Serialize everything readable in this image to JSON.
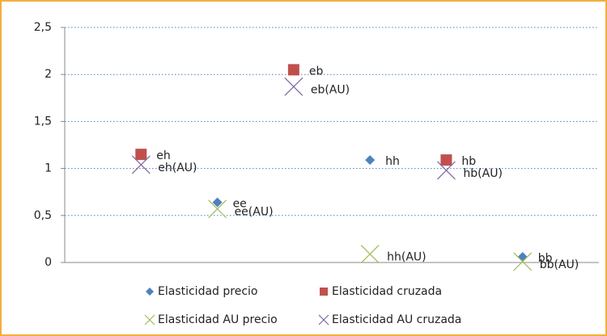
{
  "chart_data": {
    "type": "scatter",
    "xlim": [
      0,
      7
    ],
    "ylim": [
      0,
      2.5
    ],
    "yticks": [
      0,
      {
        "value": 0.5,
        "label": "0,5"
      },
      1,
      {
        "value": 1.5,
        "label": "1,5"
      },
      2,
      {
        "value": 2.5,
        "label": "2,5"
      }
    ],
    "grid": true,
    "legend": "bottom",
    "series": [
      {
        "name": "Elasticidad precio",
        "color": "#4f81bd",
        "marker": "diamond",
        "x": [
          2,
          4,
          6
        ],
        "values": [
          0.64,
          1.09,
          0.06
        ],
        "labels": [
          "ee",
          "hh",
          "bb"
        ]
      },
      {
        "name": "Elasticidad cruzada",
        "color": "#c0504d",
        "marker": "square",
        "x": [
          1,
          3,
          5
        ],
        "values": [
          1.15,
          2.05,
          1.09
        ],
        "labels": [
          "eh",
          "eb",
          "hb"
        ]
      },
      {
        "name": "Elasticidad AU precio",
        "color": "#9bbb59",
        "marker": "x",
        "x": [
          2,
          4,
          6
        ],
        "values": [
          0.57,
          0.09,
          0.01
        ],
        "labels": [
          "ee(AU)",
          "hh(AU)",
          "bb(AU)"
        ]
      },
      {
        "name": "Elasticidad AU cruzada",
        "color": "#8064a2",
        "marker": "x",
        "x": [
          1,
          3,
          5
        ],
        "values": [
          1.04,
          1.87,
          0.98
        ],
        "labels": [
          "eh(AU)",
          "eb(AU)",
          "hb(AU)"
        ]
      }
    ]
  }
}
